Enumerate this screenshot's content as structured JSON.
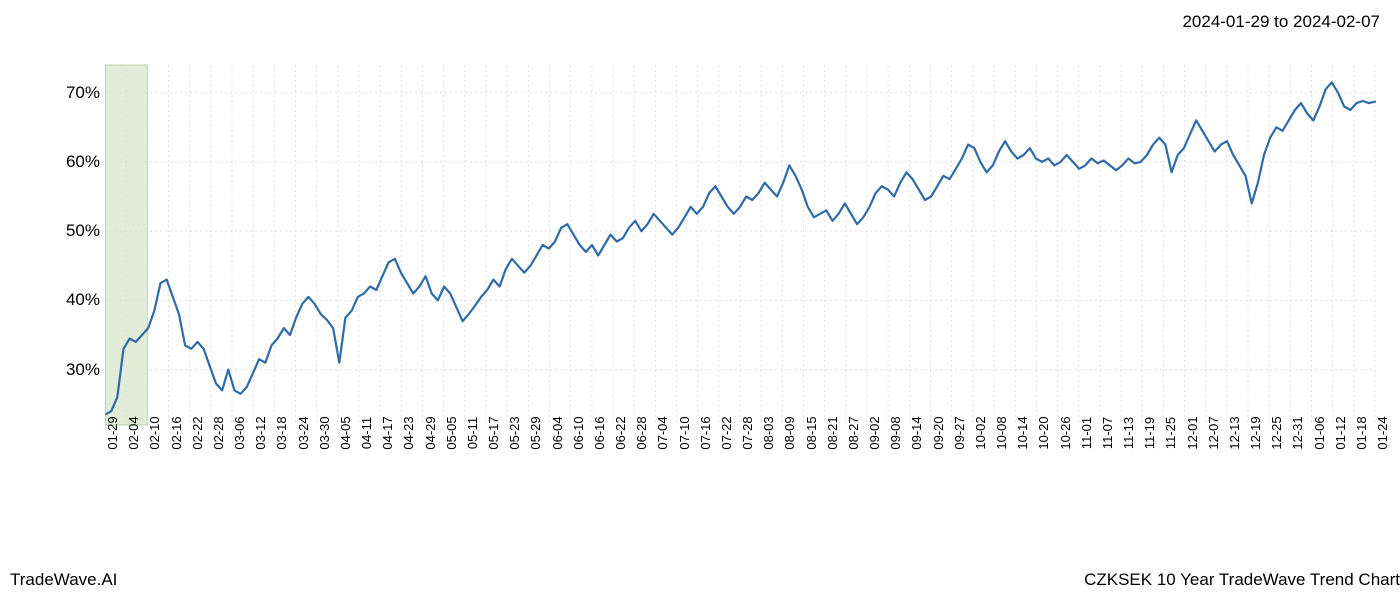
{
  "header": {
    "date_range": "2024-01-29 to 2024-02-07"
  },
  "footer": {
    "left": "TradeWave.AI",
    "right": "CZKSEK 10 Year TradeWave Trend Chart"
  },
  "chart": {
    "type": "line",
    "background_color": "#ffffff",
    "grid_color": "#e0e0e0",
    "grid_dash": "2,3",
    "line_color": "#2f6ba8",
    "line_width": 2.2,
    "highlight_band": {
      "x_start_index": 0,
      "x_end_index": 2,
      "fill_color": "#e1ecd9",
      "border_color": "#b9d2a8"
    },
    "y_axis": {
      "min": 22,
      "max": 74,
      "ticks": [
        30,
        40,
        50,
        60,
        70
      ],
      "tick_suffix": "%",
      "label_fontsize": 17,
      "label_color": "#000000"
    },
    "x_axis": {
      "labels": [
        "01-29",
        "02-04",
        "02-10",
        "02-16",
        "02-22",
        "02-28",
        "03-06",
        "03-12",
        "03-18",
        "03-24",
        "03-30",
        "04-05",
        "04-11",
        "04-17",
        "04-23",
        "04-29",
        "05-05",
        "05-11",
        "05-17",
        "05-23",
        "05-29",
        "06-04",
        "06-10",
        "06-16",
        "06-22",
        "06-28",
        "07-04",
        "07-10",
        "07-16",
        "07-22",
        "07-28",
        "08-03",
        "08-09",
        "08-15",
        "08-21",
        "08-27",
        "09-02",
        "09-08",
        "09-14",
        "09-20",
        "09-27",
        "10-02",
        "10-08",
        "10-14",
        "10-20",
        "10-26",
        "11-01",
        "11-07",
        "11-13",
        "11-19",
        "11-25",
        "12-01",
        "12-07",
        "12-13",
        "12-19",
        "12-25",
        "12-31",
        "01-06",
        "01-12",
        "01-18",
        "01-24"
      ],
      "label_fontsize": 13,
      "label_color": "#000000",
      "rotation": -90
    },
    "series": {
      "values": [
        23.5,
        24.0,
        26.0,
        33.0,
        34.5,
        34.0,
        35.0,
        36.0,
        38.5,
        42.5,
        43.0,
        40.5,
        38.0,
        33.5,
        33.0,
        34.0,
        33.0,
        30.5,
        28.0,
        27.0,
        30.0,
        27.0,
        26.5,
        27.5,
        29.5,
        31.5,
        31.0,
        33.5,
        34.5,
        36.0,
        35.0,
        37.5,
        39.5,
        40.5,
        39.5,
        38.0,
        37.2,
        36.0,
        31.0,
        37.5,
        38.5,
        40.5,
        41.0,
        42.0,
        41.5,
        43.5,
        45.5,
        46.0,
        44.0,
        42.5,
        41.0,
        42.0,
        43.5,
        41.0,
        40.0,
        42.0,
        41.0,
        39.0,
        37.0,
        38.0,
        39.2,
        40.5,
        41.5,
        43.0,
        42.0,
        44.5,
        46.0,
        45.0,
        44.0,
        45.0,
        46.5,
        48.0,
        47.5,
        48.5,
        50.5,
        51.0,
        49.5,
        48.0,
        47.0,
        48.0,
        46.5,
        48.0,
        49.5,
        48.5,
        49.0,
        50.5,
        51.5,
        50.0,
        51.0,
        52.5,
        51.5,
        50.5,
        49.5,
        50.5,
        52.0,
        53.5,
        52.5,
        53.5,
        55.5,
        56.5,
        55.0,
        53.5,
        52.5,
        53.5,
        55.0,
        54.5,
        55.5,
        57.0,
        56.0,
        55.0,
        57.0,
        59.5,
        58.0,
        56.0,
        53.5,
        52.0,
        52.5,
        53.0,
        51.5,
        52.5,
        54.0,
        52.5,
        51.0,
        52.0,
        53.5,
        55.5,
        56.5,
        56.0,
        55.0,
        57.0,
        58.5,
        57.5,
        56.0,
        54.5,
        55.0,
        56.5,
        58.0,
        57.5,
        59.0,
        60.5,
        62.5,
        62.0,
        60.0,
        58.5,
        59.5,
        61.5,
        63.0,
        61.5,
        60.5,
        61.0,
        62.0,
        60.5,
        60.0,
        60.5,
        59.5,
        60.0,
        61.0,
        60.0,
        59.0,
        59.5,
        60.5,
        59.8,
        60.2,
        59.5,
        58.8,
        59.5,
        60.5,
        59.8,
        60.0,
        61.0,
        62.5,
        63.5,
        62.5,
        58.5,
        61.0,
        62.0,
        64.0,
        66.0,
        64.5,
        63.0,
        61.5,
        62.5,
        63.0,
        61.0,
        59.5,
        58.0,
        54.0,
        57.0,
        61.0,
        63.5,
        65.0,
        64.5,
        66.0,
        67.5,
        68.5,
        67.0,
        66.0,
        68.0,
        70.5,
        71.5,
        70.0,
        68.0,
        67.5,
        68.5,
        68.8,
        68.5,
        68.7
      ]
    }
  }
}
